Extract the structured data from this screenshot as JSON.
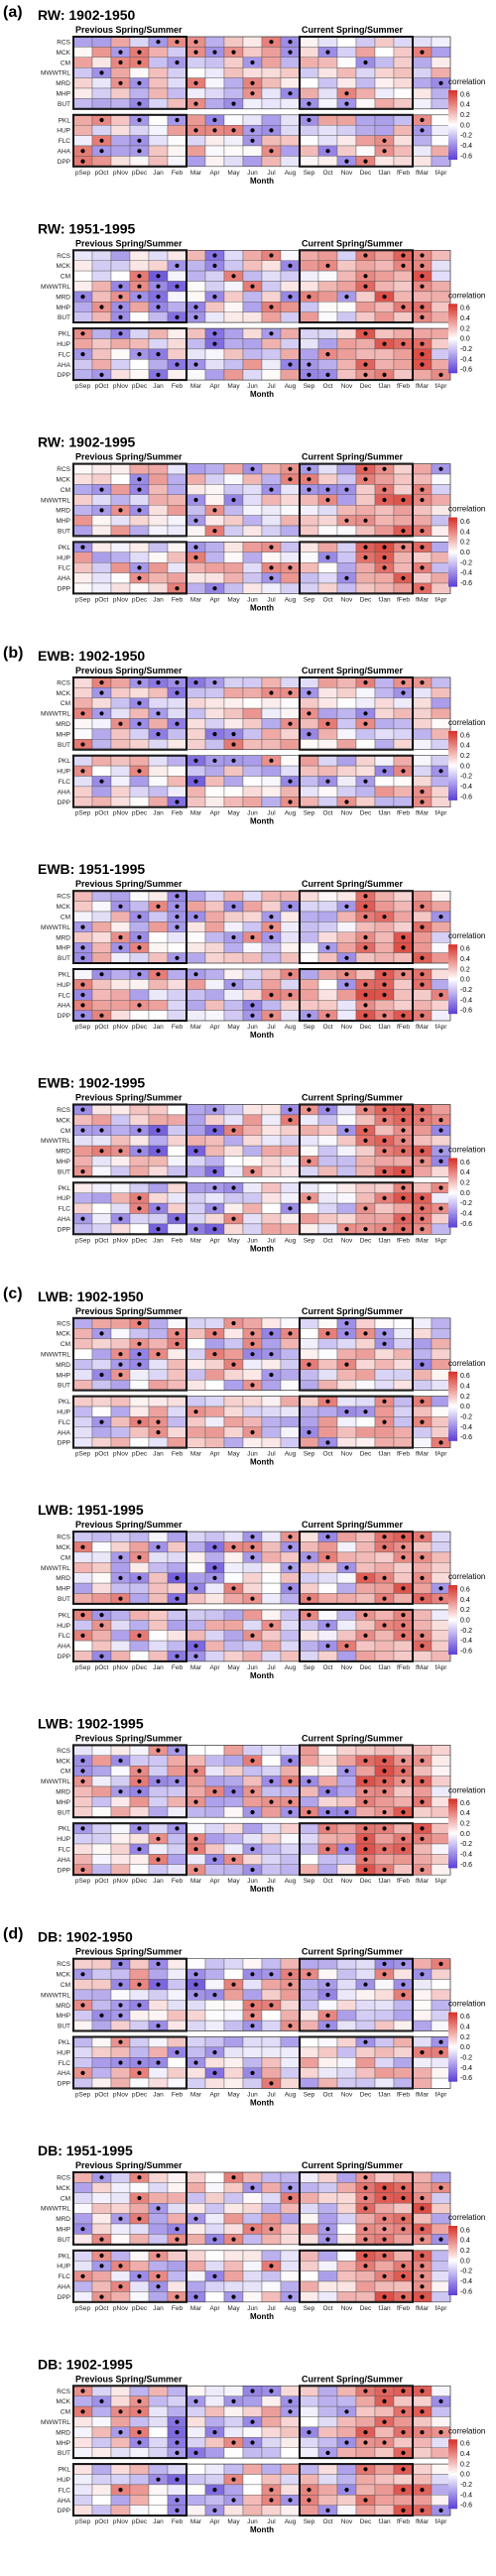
{
  "months": [
    "pSep",
    "pOct",
    "pNov",
    "pDec",
    "Jan",
    "Feb",
    "Mar",
    "Apr",
    "May",
    "Jun",
    "Jul",
    "Aug",
    "Sep",
    "Oct",
    "Nov",
    "Dec",
    "fJan",
    "fFeb",
    "fMar",
    "fApr"
  ],
  "group_top_sites": [
    "RCS",
    "MCK",
    "CM",
    "MWWTRL",
    "MRD",
    "MHP",
    "BUT"
  ],
  "group_bottom_sites": [
    "PKL",
    "HUP",
    "FLC",
    "AHA",
    "DPP"
  ],
  "season_labels": {
    "previous": "Previous Spring/Summer",
    "current": "Current Spring/Summer"
  },
  "xaxis_label": "Month",
  "legend": {
    "title": "correlation",
    "ticks": [
      "0.6",
      "0.4",
      "0.2",
      "0.0",
      "-0.2",
      "-0.4",
      "-0.6"
    ],
    "high_color": "#d73027",
    "mid_color": "#ffffff",
    "low_color": "#5a3fd6"
  },
  "chart_data": [
    {
      "type": "heatmap",
      "section_tag": "(a)",
      "title": "RW: 1902-1950",
      "pattern_seed": 1
    },
    {
      "type": "heatmap",
      "title": "RW: 1951-1995",
      "pattern_seed": 2
    },
    {
      "type": "heatmap",
      "title": "RW: 1902-1995",
      "pattern_seed": 3
    },
    {
      "type": "heatmap",
      "section_tag": "(b)",
      "title": "EWB: 1902-1950",
      "pattern_seed": 4
    },
    {
      "type": "heatmap",
      "title": "EWB: 1951-1995",
      "pattern_seed": 5
    },
    {
      "type": "heatmap",
      "title": "EWB: 1902-1995",
      "pattern_seed": 6
    },
    {
      "type": "heatmap",
      "section_tag": "(c)",
      "title": "LWB: 1902-1950",
      "pattern_seed": 7
    },
    {
      "type": "heatmap",
      "title": "LWB: 1951-1995",
      "pattern_seed": 8
    },
    {
      "type": "heatmap",
      "title": "LWB: 1902-1995",
      "pattern_seed": 9
    },
    {
      "type": "heatmap",
      "section_tag": "(d)",
      "title": "DB: 1902-1950",
      "pattern_seed": 10
    },
    {
      "type": "heatmap",
      "title": "DB: 1951-1995",
      "pattern_seed": 11
    },
    {
      "type": "heatmap",
      "title": "DB: 1902-1995",
      "pattern_seed": 12
    }
  ]
}
